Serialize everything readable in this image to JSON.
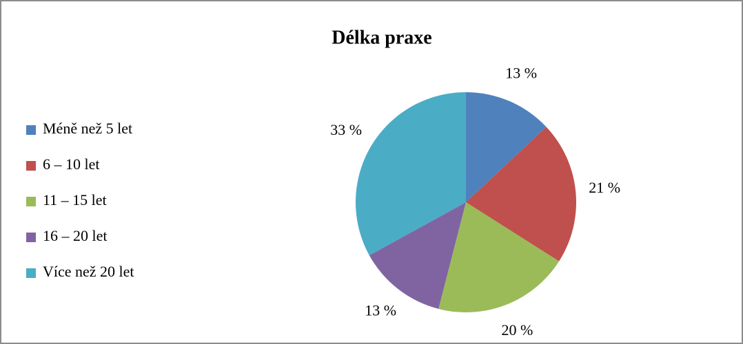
{
  "chart_data": {
    "type": "pie",
    "title": "Délka praxe",
    "categories": [
      "Méně než 5 let",
      "6 – 10 let",
      "11 – 15 let",
      "16 – 20 let",
      "Více než 20 let"
    ],
    "values": [
      13,
      21,
      20,
      13,
      33
    ],
    "value_labels": [
      "13 %",
      "21 %",
      "20 %",
      "13 %",
      "33 %"
    ],
    "colors": [
      "#4f81bd",
      "#c0504d",
      "#9bbb59",
      "#8064a2",
      "#4bacc6"
    ],
    "legend": "left"
  }
}
